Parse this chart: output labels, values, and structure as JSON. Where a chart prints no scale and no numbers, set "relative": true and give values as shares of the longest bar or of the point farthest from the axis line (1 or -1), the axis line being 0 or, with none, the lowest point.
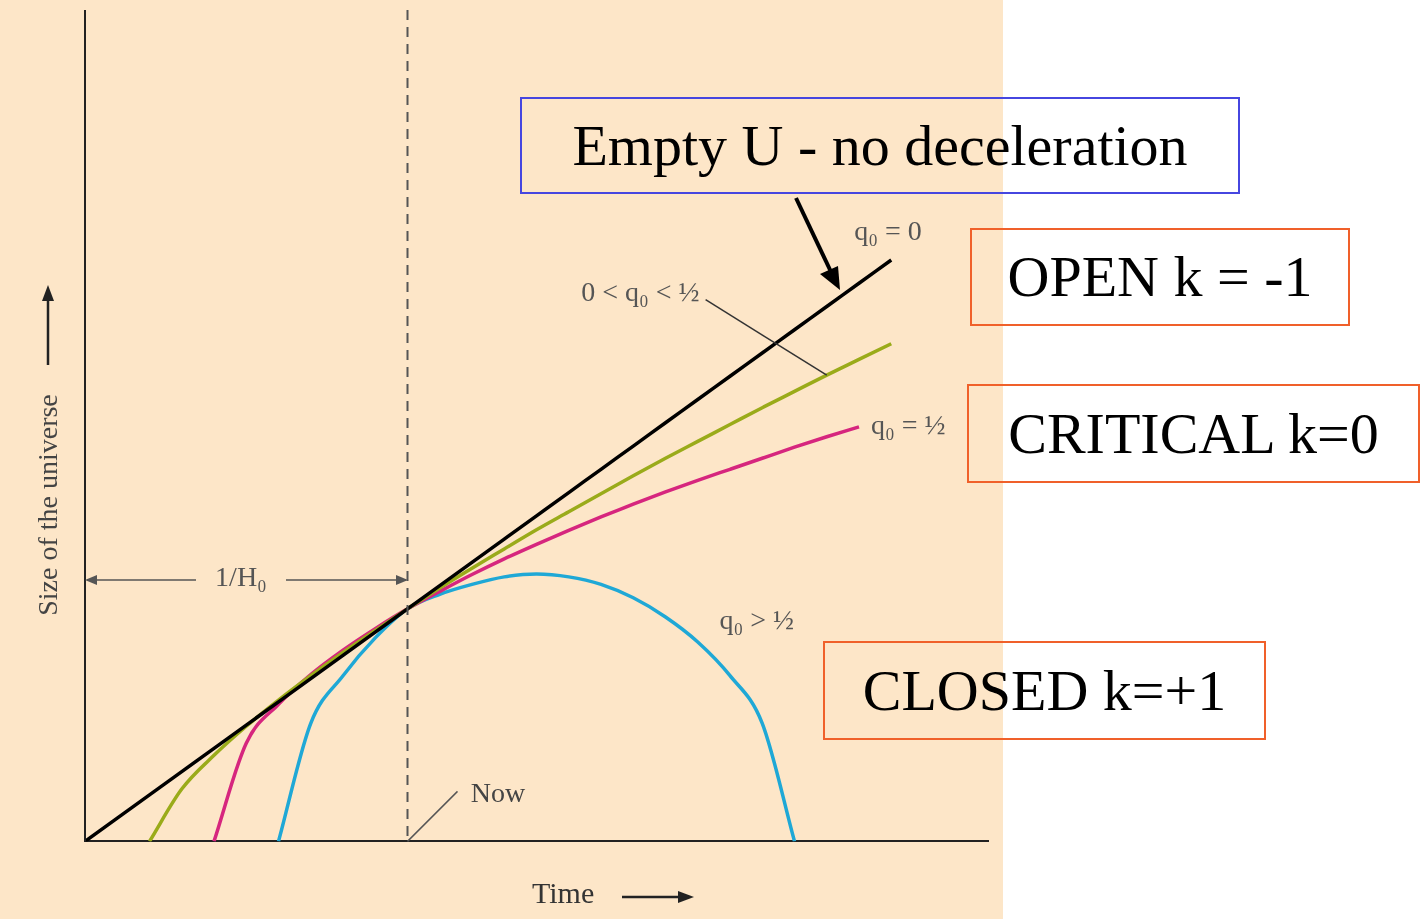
{
  "chart_data": {
    "type": "line",
    "relative": true,
    "xlabel": "Time",
    "ylabel": "Size of the universe",
    "categories": [
      null,
      null,
      null,
      null,
      null,
      null,
      null,
      null,
      null,
      null,
      null,
      null,
      null,
      null,
      null,
      null,
      null,
      null,
      null,
      null,
      null,
      null,
      null,
      null,
      null,
      null,
      null,
      null,
      null
    ],
    "series": [
      {
        "name": "q₀ = 0",
        "color": "#000000",
        "values": [
          0,
          0.04,
          0.08,
          0.12,
          0.16,
          0.2,
          0.24,
          0.28,
          0.32,
          0.36,
          0.4,
          0.44,
          0.48,
          0.52,
          0.56,
          0.6,
          0.64,
          0.68,
          0.72,
          0.76,
          0.8,
          0.84,
          0.88,
          0.92,
          0.96,
          1,
          null,
          null,
          null
        ]
      },
      {
        "name": "0 < q₀ < ½",
        "color": "#9aab1a",
        "values": [
          null,
          null,
          0,
          0.09,
          0.148,
          0.198,
          0.243,
          0.285,
          0.325,
          0.363,
          0.4,
          0.436,
          0.47,
          0.503,
          0.536,
          0.567,
          0.598,
          0.629,
          0.659,
          0.688,
          0.717,
          0.746,
          0.774,
          0.802,
          0.829,
          0.856,
          null,
          null,
          null
        ]
      },
      {
        "name": "q₀ = ½",
        "color": "#d6267e",
        "values": [
          null,
          null,
          null,
          null,
          0,
          0.169,
          0.236,
          0.287,
          0.329,
          0.366,
          0.4,
          0.43,
          0.459,
          0.486,
          0.511,
          0.535,
          0.558,
          0.58,
          0.601,
          0.621,
          0.64,
          0.659,
          0.678,
          0.696,
          0.713,
          null,
          null,
          null,
          null
        ]
      },
      {
        "name": "q₀ > ½",
        "color": "#1fa8d6",
        "values": [
          null,
          null,
          null,
          null,
          null,
          null,
          0,
          0.203,
          0.285,
          0.35,
          0.4,
          0.425,
          0.442,
          0.455,
          0.46,
          0.455,
          0.442,
          0.419,
          0.386,
          0.343,
          0.285,
          0.203,
          0,
          null,
          null,
          null,
          null,
          null,
          null
        ]
      }
    ],
    "annotations": [
      "Empty U - no deceleration",
      "OPEN k = -1",
      "CRITICAL k=0",
      "CLOSED k=+1",
      "1/H₀",
      "Now"
    ]
  }
}
